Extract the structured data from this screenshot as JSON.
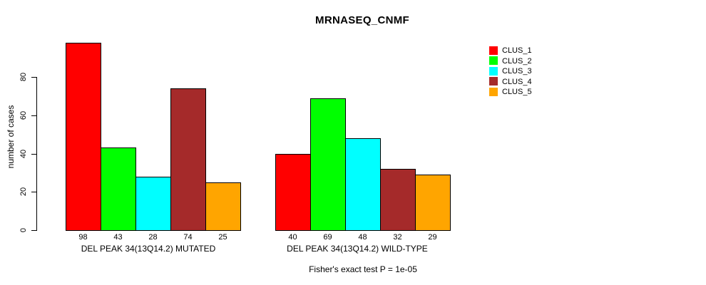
{
  "chart_data": {
    "type": "bar",
    "title": "MRNASEQ_CNMF",
    "ylabel": "number of cases",
    "annotation": "Fisher's exact test P = 1e-05",
    "yticks": [
      0,
      20,
      40,
      60,
      80
    ],
    "ylim": [
      0,
      100
    ],
    "grid": false,
    "legend_position": "top-right",
    "series": [
      {
        "name": "CLUS_1",
        "color": "#FF0000"
      },
      {
        "name": "CLUS_2",
        "color": "#00FF00"
      },
      {
        "name": "CLUS_3",
        "color": "#00FFFF"
      },
      {
        "name": "CLUS_4",
        "color": "#A52A2A"
      },
      {
        "name": "CLUS_5",
        "color": "#FFA500"
      }
    ],
    "groups": [
      {
        "label": "DEL PEAK 34(13Q14.2) MUTATED",
        "values": [
          98,
          43,
          28,
          74,
          25
        ]
      },
      {
        "label": "DEL PEAK 34(13Q14.2) WILD-TYPE",
        "values": [
          40,
          69,
          48,
          32,
          29
        ]
      }
    ]
  }
}
